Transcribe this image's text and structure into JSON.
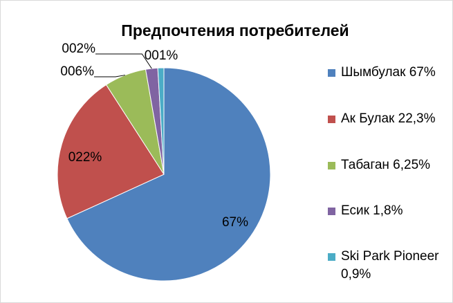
{
  "chart_data": {
    "type": "pie",
    "title": "Предпочтения потребителей",
    "categories": [
      "Шымбулак 67%",
      "Ак Булак 22,3%",
      "Табаган 6,25%",
      "Есик 1,8%",
      "Ski Park Pioneer 0,9%"
    ],
    "values": [
      67,
      22.3,
      6.25,
      1.8,
      0.9
    ],
    "value_labels": [
      "67%",
      "022%",
      "006%",
      "002%",
      "001%"
    ],
    "colors": [
      "#4f81bd",
      "#c0504d",
      "#9bbb59",
      "#8064a2",
      "#4bacc6"
    ],
    "legend": "right"
  }
}
